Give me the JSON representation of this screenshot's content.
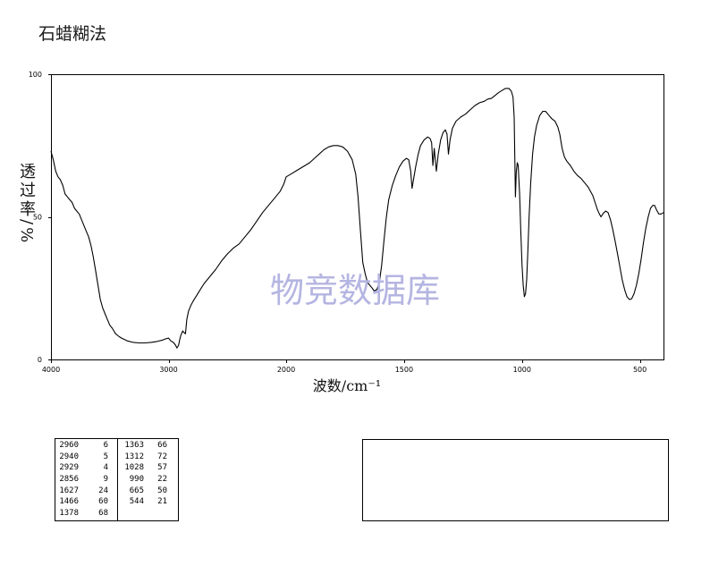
{
  "title": "石蜡糊法",
  "watermark": "物竞数据库",
  "colors": {
    "line": "#000000",
    "watermark": "#b5b5e2"
  },
  "chart_data": {
    "type": "line",
    "title": "石蜡糊法",
    "xlabel": "波数/cm⁻¹",
    "ylabel": "透过率/%",
    "xlim": [
      4000,
      400
    ],
    "x_break": 2000,
    "ylim": [
      0,
      100
    ],
    "xticks": [
      4000,
      3000,
      2000,
      1500,
      1000,
      500
    ],
    "yticks": [
      100,
      50,
      0
    ],
    "grid": false,
    "series": [
      {
        "x": [
          4000,
          3980,
          3960,
          3940,
          3920,
          3900,
          3880,
          3860,
          3840,
          3820,
          3800,
          3780,
          3760,
          3740,
          3720,
          3700,
          3680,
          3660,
          3640,
          3620,
          3600,
          3580,
          3560,
          3540,
          3520,
          3500,
          3480,
          3450,
          3420,
          3400,
          3350,
          3300,
          3250,
          3200,
          3150,
          3100,
          3050,
          3020,
          3000,
          2980,
          2960,
          2950,
          2940,
          2929,
          2915,
          2905,
          2895,
          2880,
          2870,
          2856,
          2845,
          2830,
          2810,
          2790,
          2760,
          2730,
          2700,
          2650,
          2600,
          2550,
          2500,
          2450,
          2400,
          2350,
          2300,
          2250,
          2200,
          2150,
          2100,
          2050,
          2020,
          2000,
          1980,
          1950,
          1920,
          1900,
          1880,
          1860,
          1840,
          1820,
          1800,
          1780,
          1760,
          1740,
          1720,
          1705,
          1695,
          1685,
          1675,
          1665,
          1655,
          1645,
          1635,
          1627,
          1615,
          1605,
          1595,
          1585,
          1575,
          1565,
          1550,
          1535,
          1520,
          1505,
          1490,
          1480,
          1472,
          1466,
          1460,
          1450,
          1440,
          1430,
          1415,
          1400,
          1390,
          1383,
          1378,
          1372,
          1363,
          1355,
          1345,
          1335,
          1325,
          1318,
          1312,
          1305,
          1295,
          1280,
          1260,
          1240,
          1220,
          1200,
          1180,
          1160,
          1145,
          1130,
          1115,
          1100,
          1085,
          1070,
          1055,
          1045,
          1038,
          1033,
          1028,
          1024,
          1020,
          1016,
          1010,
          1005,
          1000,
          995,
          990,
          985,
          980,
          975,
          970,
          963,
          955,
          947,
          938,
          925,
          912,
          900,
          890,
          875,
          860,
          848,
          840,
          830,
          820,
          810,
          795,
          780,
          765,
          750,
          735,
          720,
          710,
          700,
          690,
          680,
          672,
          665,
          655,
          645,
          635,
          625,
          615,
          605,
          595,
          585,
          575,
          565,
          555,
          544,
          535,
          525,
          515,
          505,
          495,
          485,
          475,
          465,
          455,
          445,
          438,
          430,
          420,
          410,
          400
        ],
        "y": [
          73,
          70,
          66,
          64,
          63,
          61,
          58,
          57,
          56,
          55,
          53,
          52,
          51,
          49,
          47,
          45,
          43,
          40,
          36,
          31,
          26,
          21,
          18,
          16,
          14,
          12,
          11,
          9,
          8,
          7.5,
          6.5,
          6,
          5.8,
          5.8,
          6,
          6.3,
          6.8,
          7.3,
          7.5,
          6.5,
          6,
          5.5,
          5,
          4,
          5,
          7,
          8.5,
          10,
          9.5,
          9,
          14,
          17,
          19,
          20.5,
          22.5,
          24.5,
          26.5,
          29,
          31.5,
          34.5,
          37,
          39,
          40.5,
          43,
          45.5,
          48.5,
          51.5,
          54,
          56.5,
          59,
          61.5,
          64,
          65,
          66.5,
          68,
          69,
          70.5,
          72,
          73.5,
          74.5,
          75,
          75,
          74.5,
          73,
          70,
          65,
          57,
          45,
          34,
          30,
          27,
          26,
          25,
          24,
          24.5,
          27,
          33,
          42,
          50,
          56,
          61,
          64.5,
          67.5,
          69.5,
          70.5,
          70,
          66,
          60,
          63,
          68,
          72,
          75,
          77,
          78,
          77.5,
          76,
          68,
          74,
          66,
          72,
          77,
          79.5,
          80.5,
          79,
          72,
          77,
          81,
          83.5,
          85,
          86,
          87.5,
          89,
          90,
          90.5,
          91.3,
          91.5,
          92.5,
          93.5,
          94.3,
          95,
          95,
          94,
          92,
          85,
          57,
          66,
          69,
          68,
          58,
          45,
          33,
          26,
          22,
          23,
          28,
          38,
          50,
          62,
          72,
          78,
          82,
          85.5,
          87,
          87,
          86,
          84.5,
          83.5,
          81.5,
          79,
          74,
          71,
          69.5,
          68,
          66,
          64.5,
          63.5,
          62,
          60.5,
          59,
          57.5,
          55,
          52.5,
          51,
          50,
          51.3,
          52,
          51.5,
          49,
          45.5,
          41.5,
          37,
          32.5,
          28,
          24.5,
          22,
          21,
          21.3,
          23,
          26,
          30,
          35,
          41,
          46,
          50,
          53,
          54,
          54,
          52.5,
          51,
          51,
          51.5
        ]
      }
    ]
  },
  "peak_table": {
    "left": [
      [
        2960,
        6
      ],
      [
        2940,
        5
      ],
      [
        2929,
        4
      ],
      [
        2856,
        9
      ],
      [
        1627,
        24
      ],
      [
        1466,
        60
      ],
      [
        1378,
        68
      ]
    ],
    "right": [
      [
        1363,
        66
      ],
      [
        1312,
        72
      ],
      [
        1028,
        57
      ],
      [
        990,
        22
      ],
      [
        665,
        50
      ],
      [
        544,
        21
      ]
    ]
  }
}
